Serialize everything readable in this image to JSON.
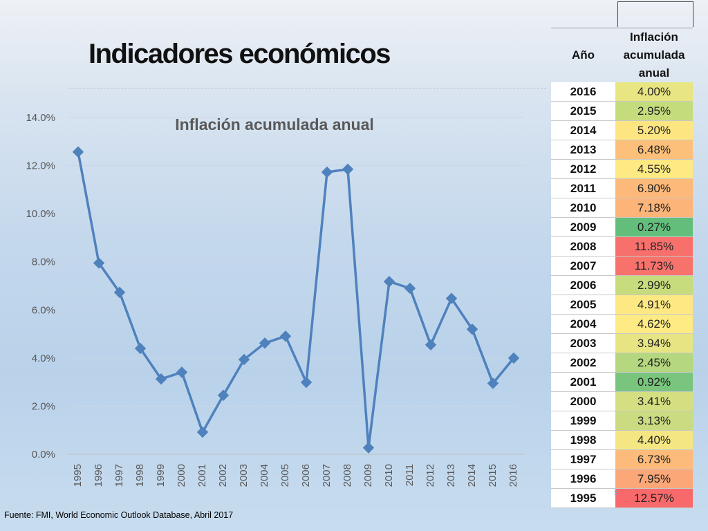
{
  "slide": {
    "title": "Indicadores económicos",
    "source": "Fuente: FMI, World Economic Outlook Database, Abril 2017"
  },
  "table": {
    "header_year": "Año",
    "header_value": "Inflación acumulada anual",
    "rows": [
      {
        "year": "2016",
        "value": "4.00%",
        "color": "#e8e583"
      },
      {
        "year": "2015",
        "value": "2.95%",
        "color": "#c5dc7d"
      },
      {
        "year": "2014",
        "value": "5.20%",
        "color": "#fde582"
      },
      {
        "year": "2013",
        "value": "6.48%",
        "color": "#fdc07b"
      },
      {
        "year": "2012",
        "value": "4.55%",
        "color": "#fee983"
      },
      {
        "year": "2011",
        "value": "6.90%",
        "color": "#fcb97a"
      },
      {
        "year": "2010",
        "value": "7.18%",
        "color": "#fcb479"
      },
      {
        "year": "2009",
        "value": "0.27%",
        "color": "#63be7b"
      },
      {
        "year": "2008",
        "value": "11.85%",
        "color": "#f8706c"
      },
      {
        "year": "2007",
        "value": "11.73%",
        "color": "#f8726c"
      },
      {
        "year": "2006",
        "value": "2.99%",
        "color": "#c6dc7d"
      },
      {
        "year": "2005",
        "value": "4.91%",
        "color": "#fee883"
      },
      {
        "year": "2004",
        "value": "4.62%",
        "color": "#feeb84"
      },
      {
        "year": "2003",
        "value": "3.94%",
        "color": "#e6e483"
      },
      {
        "year": "2002",
        "value": "2.45%",
        "color": "#b4d77f"
      },
      {
        "year": "2001",
        "value": "0.92%",
        "color": "#79c57d"
      },
      {
        "year": "2000",
        "value": "3.41%",
        "color": "#d5df82"
      },
      {
        "year": "1999",
        "value": "3.13%",
        "color": "#cadb81"
      },
      {
        "year": "1998",
        "value": "4.40%",
        "color": "#f4e783"
      },
      {
        "year": "1997",
        "value": "6.73%",
        "color": "#fcbb7a"
      },
      {
        "year": "1996",
        "value": "7.95%",
        "color": "#fba777"
      },
      {
        "year": "1995",
        "value": "12.57%",
        "color": "#f8696b"
      }
    ]
  },
  "chart_data": {
    "type": "line",
    "title": "Inflación acumulada anual",
    "xlabel": "",
    "ylabel": "",
    "categories": [
      "1995",
      "1996",
      "1997",
      "1998",
      "1999",
      "2000",
      "2001",
      "2002",
      "2003",
      "2004",
      "2005",
      "2006",
      "2007",
      "2008",
      "2009",
      "2010",
      "2011",
      "2012",
      "2013",
      "2014",
      "2015",
      "2016"
    ],
    "series": [
      {
        "values": [
          12.57,
          7.95,
          6.73,
          4.4,
          3.13,
          3.41,
          0.92,
          2.45,
          3.94,
          4.62,
          4.91,
          2.99,
          11.73,
          11.85,
          0.27,
          7.18,
          6.9,
          4.55,
          6.48,
          5.2,
          2.95,
          4.0
        ],
        "color": "#4f81bd"
      }
    ],
    "ylim": [
      0,
      14
    ],
    "yticks": [
      "0.0%",
      "2.0%",
      "4.0%",
      "6.0%",
      "8.0%",
      "10.0%",
      "12.0%",
      "14.0%"
    ],
    "grid": true,
    "legend": "none",
    "marker": "diamond"
  }
}
